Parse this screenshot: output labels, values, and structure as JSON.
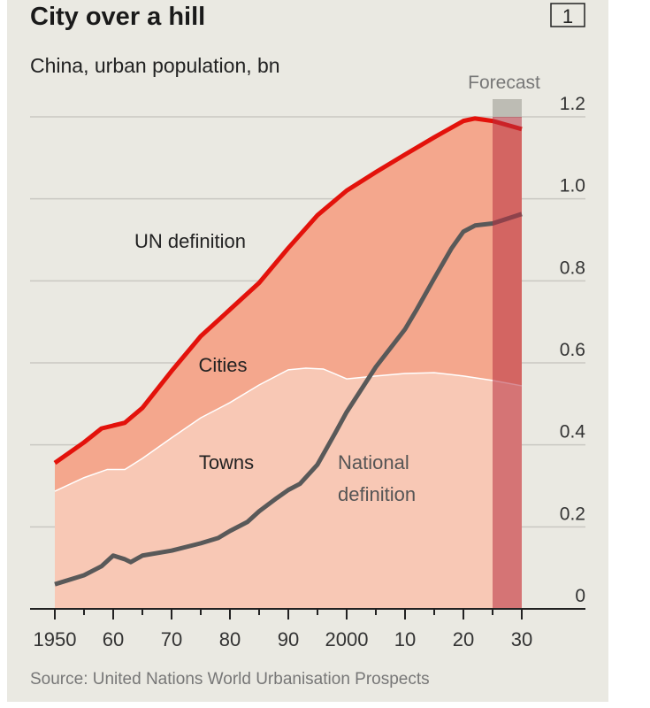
{
  "chart_data": {
    "type": "area",
    "title": "City over a hill",
    "subtitle": "China, urban population, bn",
    "badge": "1",
    "source": "Source: United Nations World Urbanisation Prospects",
    "forecast_label": "Forecast",
    "forecast_range": [
      2025,
      2030
    ],
    "xlim": [
      1950,
      2030
    ],
    "ylim": [
      0,
      1.2
    ],
    "x_ticks": [
      1950,
      1960,
      1970,
      1980,
      1990,
      2000,
      2010,
      2020,
      2030
    ],
    "x_tick_labels": [
      "1950",
      "60",
      "70",
      "80",
      "90",
      "2000",
      "10",
      "20",
      "30"
    ],
    "y_ticks": [
      0,
      0.2,
      0.4,
      0.6,
      0.8,
      1.0,
      1.2
    ],
    "y_tick_labels": [
      "0",
      "0.2",
      "0.4",
      "0.6",
      "0.8",
      "1.0",
      "1.2"
    ],
    "annotations": {
      "un": "UN definition",
      "cities": "Cities",
      "towns": "Towns",
      "national1": "National",
      "national2": "definition"
    },
    "colors": {
      "un_line": "#e3120b",
      "cities_fill": "#f4a78d",
      "towns_fill": "#f8c8b5",
      "national_line": "#595959",
      "forecast": "#b8303f"
    },
    "series": [
      {
        "name": "UN definition",
        "x": [
          1950,
          1955,
          1958,
          1962,
          1965,
          1970,
          1975,
          1980,
          1985,
          1990,
          1995,
          2000,
          2005,
          2010,
          2015,
          2020,
          2022,
          2025,
          2030
        ],
        "values": [
          0.356,
          0.406,
          0.44,
          0.454,
          0.49,
          0.58,
          0.665,
          0.73,
          0.795,
          0.88,
          0.96,
          1.02,
          1.065,
          1.108,
          1.15,
          1.19,
          1.196,
          1.19,
          1.17
        ]
      },
      {
        "name": "Towns",
        "x": [
          1950,
          1955,
          1959,
          1962,
          1965,
          1970,
          1975,
          1980,
          1985,
          1990,
          1993,
          1996,
          2000,
          2005,
          2010,
          2015,
          2020,
          2025,
          2030
        ],
        "values": [
          0.287,
          0.32,
          0.34,
          0.34,
          0.367,
          0.417,
          0.466,
          0.503,
          0.546,
          0.583,
          0.587,
          0.585,
          0.561,
          0.568,
          0.574,
          0.576,
          0.568,
          0.557,
          0.544
        ]
      },
      {
        "name": "National definition",
        "x": [
          1950,
          1955,
          1958,
          1960,
          1962,
          1963,
          1965,
          1970,
          1975,
          1978,
          1980,
          1983,
          1985,
          1988,
          1990,
          1992,
          1995,
          1998,
          2000,
          2005,
          2010,
          2012,
          2015,
          2018,
          2020,
          2022,
          2025,
          2030
        ],
        "values": [
          0.06,
          0.082,
          0.104,
          0.13,
          0.121,
          0.114,
          0.13,
          0.142,
          0.16,
          0.173,
          0.19,
          0.212,
          0.238,
          0.27,
          0.29,
          0.305,
          0.352,
          0.428,
          0.48,
          0.59,
          0.682,
          0.73,
          0.806,
          0.88,
          0.92,
          0.935,
          0.94,
          0.963
        ]
      }
    ]
  }
}
